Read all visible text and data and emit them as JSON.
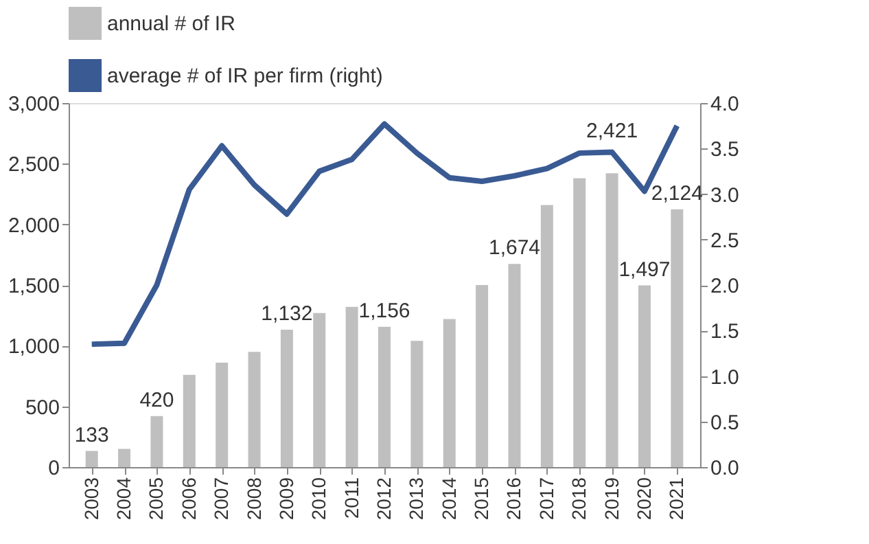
{
  "chart_data": {
    "type": "bar",
    "categories": [
      "2003",
      "2004",
      "2005",
      "2006",
      "2007",
      "2008",
      "2009",
      "2010",
      "2011",
      "2012",
      "2013",
      "2014",
      "2015",
      "2016",
      "2017",
      "2018",
      "2019",
      "2020",
      "2021"
    ],
    "series": [
      {
        "name": "annual # of IR",
        "color": "#bfbfbf",
        "values": [
          133,
          150,
          420,
          760,
          860,
          950,
          1132,
          1270,
          1320,
          1156,
          1040,
          1220,
          1500,
          1674,
          2160,
          2380,
          2421,
          1497,
          2124
        ],
        "value_labels": [
          "133",
          null,
          "420",
          null,
          null,
          null,
          "1,132",
          null,
          null,
          "1,156",
          null,
          null,
          null,
          "1,674",
          null,
          null,
          "2,421",
          "1,497",
          "2,124"
        ]
      },
      {
        "name": "average # of IR per firm (right)",
        "type": "line",
        "axis": "y2",
        "color": "#3a5a93",
        "values": [
          1.35,
          1.36,
          2.0,
          3.05,
          3.53,
          3.1,
          2.78,
          3.25,
          3.38,
          3.77,
          3.45,
          3.18,
          3.14,
          3.2,
          3.28,
          3.45,
          3.46,
          3.03,
          3.75
        ]
      }
    ],
    "ylim": [
      0,
      3000
    ],
    "yticks": [
      {
        "value": 0,
        "label": "0"
      },
      {
        "value": 500,
        "label": "500"
      },
      {
        "value": 1000,
        "label": "1,000"
      },
      {
        "value": 1500,
        "label": "1,500"
      },
      {
        "value": 2000,
        "label": "2,000"
      },
      {
        "value": 2500,
        "label": "2,500"
      },
      {
        "value": 3000,
        "label": "3,000"
      }
    ],
    "y2lim": [
      0,
      4
    ],
    "y2ticks": [
      {
        "value": 0,
        "label": "0.0"
      },
      {
        "value": 0.5,
        "label": "0.5"
      },
      {
        "value": 1,
        "label": "1.0"
      },
      {
        "value": 1.5,
        "label": "1.5"
      },
      {
        "value": 2,
        "label": "2.0"
      },
      {
        "value": 2.5,
        "label": "2.5"
      },
      {
        "value": 3,
        "label": "3.0"
      },
      {
        "value": 3.5,
        "label": "3.5"
      },
      {
        "value": 4,
        "label": "4.0"
      }
    ],
    "legend": "top",
    "grid": false,
    "marker": "none",
    "line_style": "solid"
  }
}
